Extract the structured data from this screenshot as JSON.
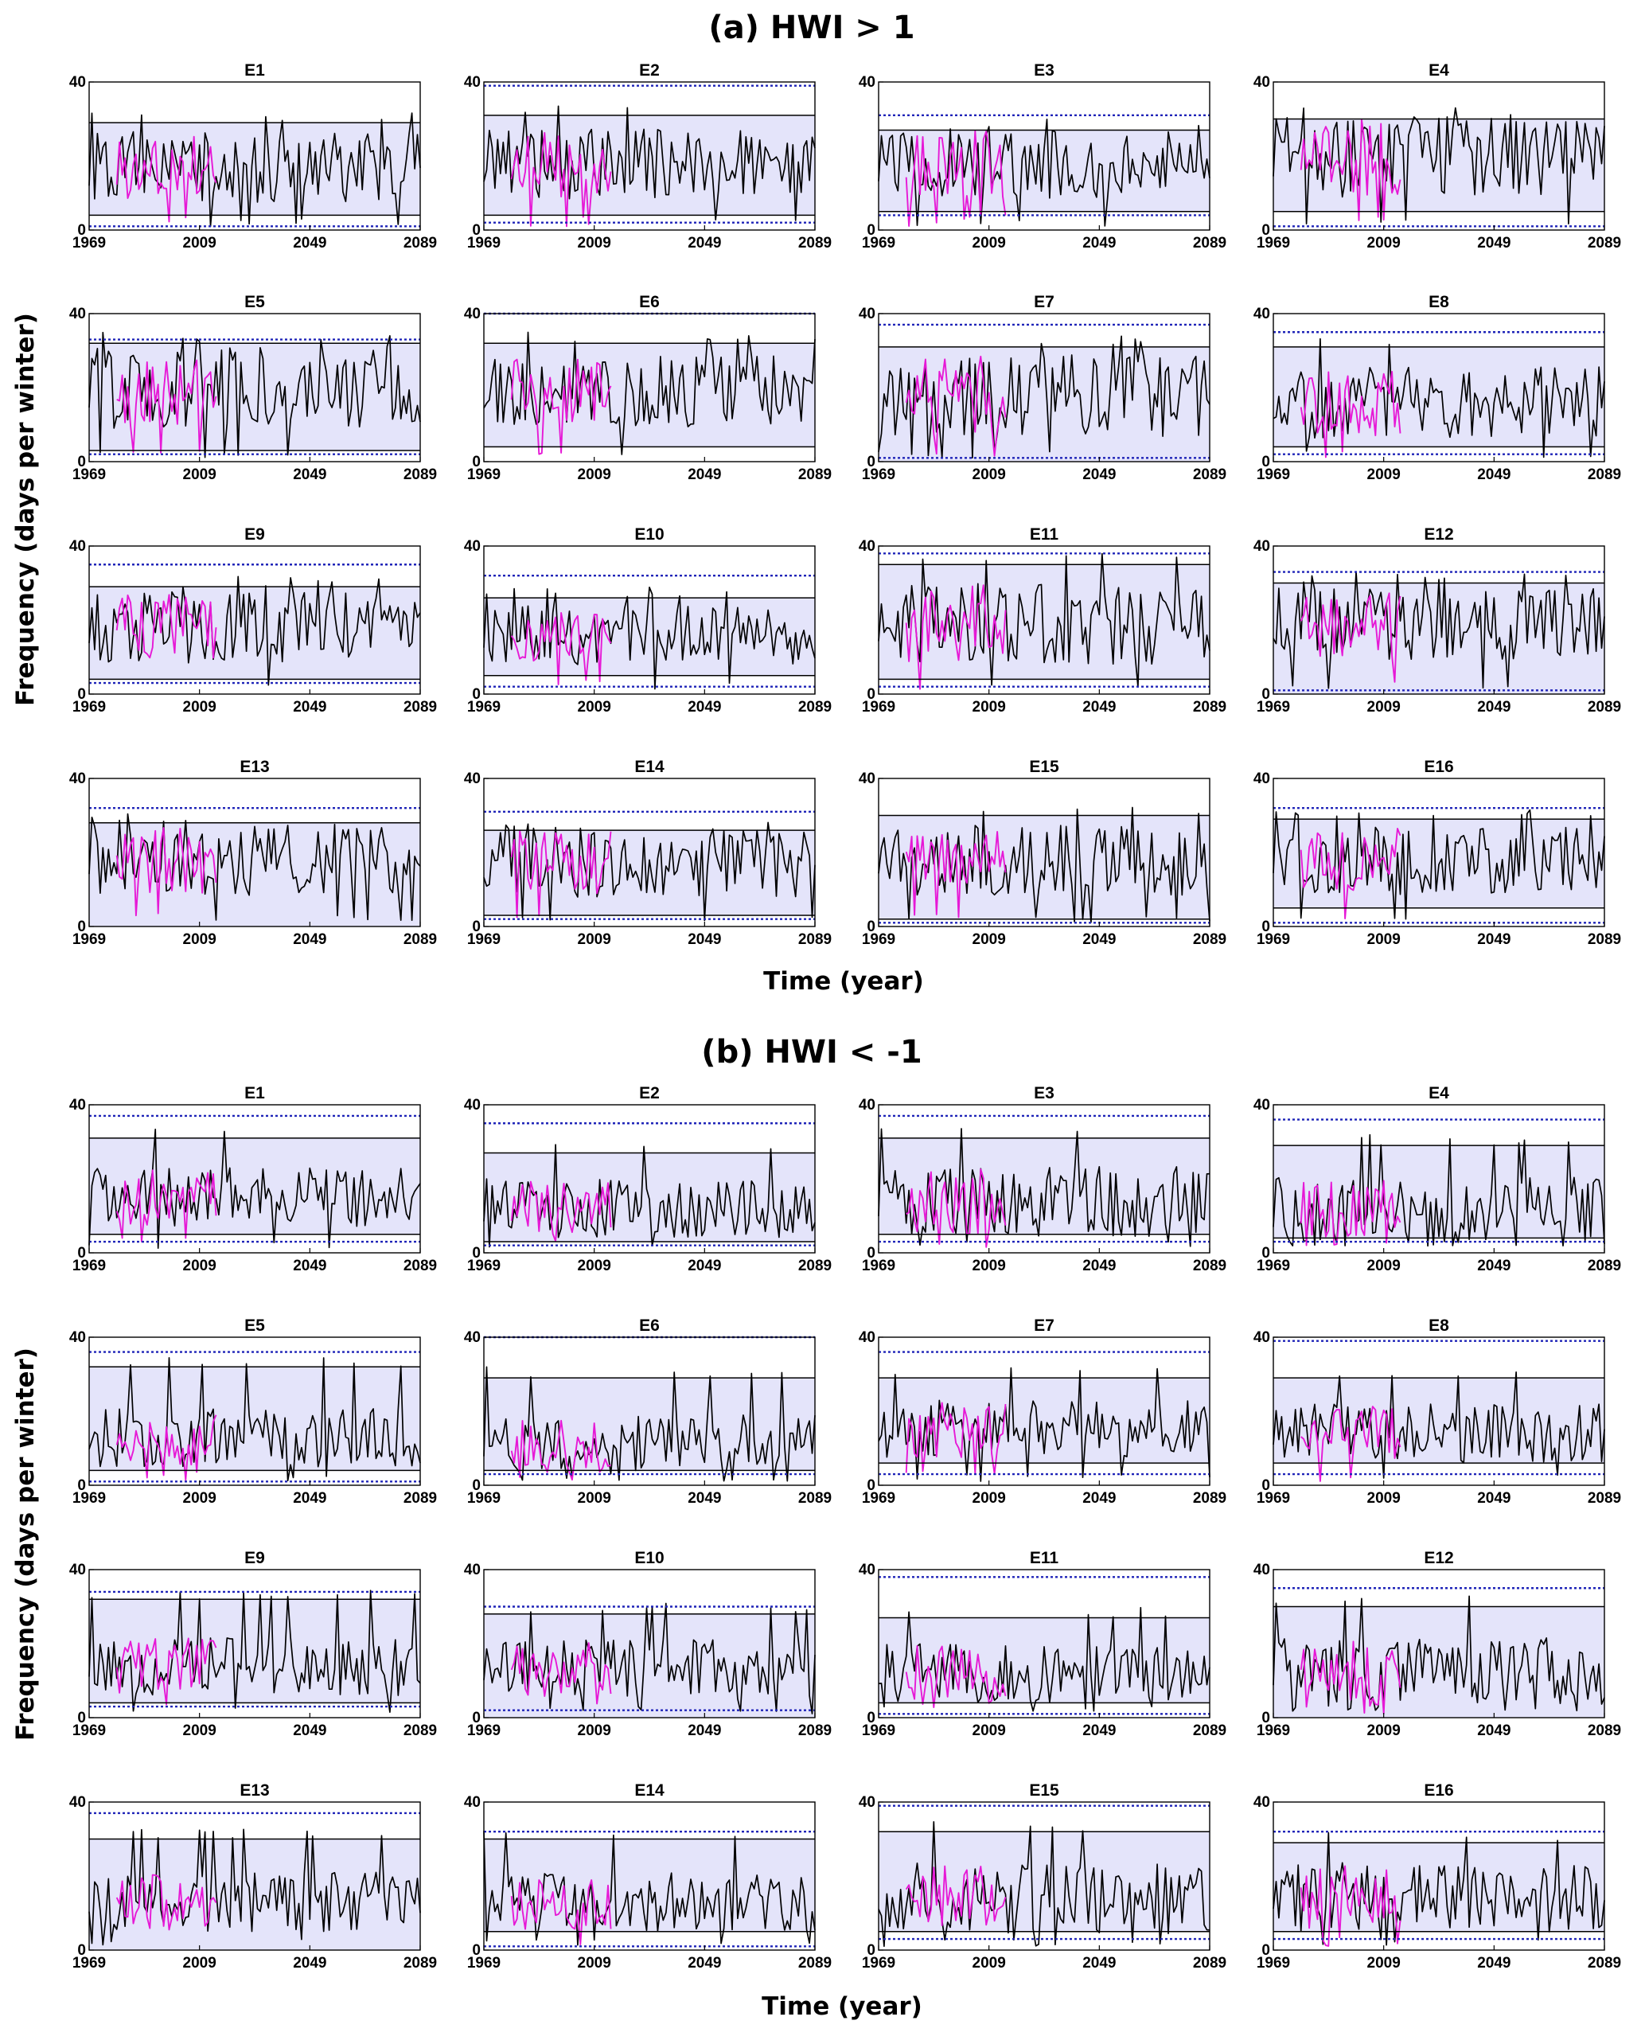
{
  "figure": {
    "panel_a_title": "(a)  HWI > 1",
    "panel_b_title": "(b)  HWI < -1",
    "ylabel": "Frequency (days per winter)",
    "xlabel": "Time (year)"
  },
  "colors": {
    "band": "#e4e4fa",
    "simulation": "#000000",
    "observation": "#e619d6",
    "dotted_bounds": "#1f24b8"
  },
  "chart_data": [
    {
      "group": "(a)  HWI > 1",
      "type": "line",
      "xlim": [
        1969,
        2089
      ],
      "ylim": [
        0,
        40
      ],
      "xticks": [
        1969,
        2009,
        2049,
        2089
      ],
      "yticks": [
        0,
        40
      ],
      "xlabel": "Time (year)",
      "ylabel": "Frequency (days per winter)",
      "grid": false,
      "panels": [
        {
          "title": "E1",
          "upper": 29,
          "lower": 4,
          "dot_upper": null,
          "dot_lower": 1,
          "mean": 17,
          "amp": 6
        },
        {
          "title": "E2",
          "upper": 31,
          "lower": 4,
          "dot_upper": 39,
          "dot_lower": 2,
          "mean": 18,
          "amp": 6
        },
        {
          "title": "E3",
          "upper": 27,
          "lower": 5,
          "dot_upper": 31,
          "dot_lower": 4,
          "mean": 18,
          "amp": 6
        },
        {
          "title": "E4",
          "upper": 30,
          "lower": 5,
          "dot_upper": null,
          "dot_lower": 1,
          "mean": 20,
          "amp": 7
        },
        {
          "title": "E5",
          "upper": 32,
          "lower": 3,
          "dot_upper": 33,
          "dot_lower": 2,
          "mean": 20,
          "amp": 7
        },
        {
          "title": "E6",
          "upper": 32,
          "lower": 4,
          "dot_upper": 40,
          "dot_lower": null,
          "mean": 19,
          "amp": 6
        },
        {
          "title": "E7",
          "upper": 31,
          "lower": null,
          "dot_upper": 37,
          "dot_lower": 1,
          "mean": 18,
          "amp": 7
        },
        {
          "title": "E8",
          "upper": 31,
          "lower": 4,
          "dot_upper": 35,
          "dot_lower": 2,
          "mean": 16,
          "amp": 6
        },
        {
          "title": "E9",
          "upper": 29,
          "lower": 4,
          "dot_upper": 35,
          "dot_lower": 3,
          "mean": 18,
          "amp": 6
        },
        {
          "title": "E10",
          "upper": 26,
          "lower": 5,
          "dot_upper": 32,
          "dot_lower": 2,
          "mean": 16,
          "amp": 5
        },
        {
          "title": "E11",
          "upper": 35,
          "lower": 4,
          "dot_upper": 38,
          "dot_lower": 2,
          "mean": 19,
          "amp": 7
        },
        {
          "title": "E12",
          "upper": 30,
          "lower": null,
          "dot_upper": 33,
          "dot_lower": 1,
          "mean": 19,
          "amp": 6
        },
        {
          "title": "E13",
          "upper": 28,
          "lower": null,
          "dot_upper": 32,
          "dot_lower": null,
          "mean": 18,
          "amp": 6
        },
        {
          "title": "E14",
          "upper": 26,
          "lower": 3,
          "dot_upper": 31,
          "dot_lower": 2,
          "mean": 17,
          "amp": 6
        },
        {
          "title": "E15",
          "upper": 30,
          "lower": 2,
          "dot_upper": null,
          "dot_lower": 1,
          "mean": 18,
          "amp": 6
        },
        {
          "title": "E16",
          "upper": 29,
          "lower": 5,
          "dot_upper": 32,
          "dot_lower": 1,
          "mean": 18,
          "amp": 6
        }
      ]
    },
    {
      "group": "(b)  HWI < -1",
      "type": "line",
      "xlim": [
        1969,
        2089
      ],
      "ylim": [
        0,
        40
      ],
      "xticks": [
        1969,
        2009,
        2049,
        2089
      ],
      "yticks": [
        0,
        40
      ],
      "xlabel": "Time (year)",
      "ylabel": "Frequency (days per winter)",
      "grid": false,
      "panels": [
        {
          "title": "E1",
          "upper": 31,
          "lower": 5,
          "dot_upper": 37,
          "dot_lower": 3,
          "mean": 15,
          "amp": 5
        },
        {
          "title": "E2",
          "upper": 27,
          "lower": 3,
          "dot_upper": 35,
          "dot_lower": 2,
          "mean": 12,
          "amp": 5
        },
        {
          "title": "E3",
          "upper": 31,
          "lower": 5,
          "dot_upper": 37,
          "dot_lower": 3,
          "mean": 14,
          "amp": 6
        },
        {
          "title": "E4",
          "upper": 29,
          "lower": 4,
          "dot_upper": 36,
          "dot_lower": 3,
          "mean": 11,
          "amp": 6
        },
        {
          "title": "E5",
          "upper": 32,
          "lower": 4,
          "dot_upper": 36,
          "dot_lower": 1,
          "mean": 13,
          "amp": 5
        },
        {
          "title": "E6",
          "upper": 29,
          "lower": 4,
          "dot_upper": 40,
          "dot_lower": 3,
          "mean": 11,
          "amp": 5
        },
        {
          "title": "E7",
          "upper": 29,
          "lower": 6,
          "dot_upper": 36,
          "dot_lower": 3,
          "mean": 15,
          "amp": 5
        },
        {
          "title": "E8",
          "upper": 29,
          "lower": 6,
          "dot_upper": 39,
          "dot_lower": 3,
          "mean": 14,
          "amp": 5
        },
        {
          "title": "E9",
          "upper": 32,
          "lower": 4,
          "dot_upper": 34,
          "dot_lower": 3,
          "mean": 14,
          "amp": 5
        },
        {
          "title": "E10",
          "upper": 28,
          "lower": null,
          "dot_upper": 30,
          "dot_lower": 2,
          "mean": 13,
          "amp": 5
        },
        {
          "title": "E11",
          "upper": 27,
          "lower": 4,
          "dot_upper": 38,
          "dot_lower": 1,
          "mean": 12,
          "amp": 5
        },
        {
          "title": "E12",
          "upper": 30,
          "lower": null,
          "dot_upper": 35,
          "dot_lower": null,
          "mean": 12,
          "amp": 6
        },
        {
          "title": "E13",
          "upper": 30,
          "lower": null,
          "dot_upper": 37,
          "dot_lower": null,
          "mean": 13,
          "amp": 5
        },
        {
          "title": "E14",
          "upper": 30,
          "lower": 5,
          "dot_upper": 32,
          "dot_lower": 1,
          "mean": 13,
          "amp": 5
        },
        {
          "title": "E15",
          "upper": 32,
          "lower": 5,
          "dot_upper": 39,
          "dot_lower": 3,
          "mean": 14,
          "amp": 6
        },
        {
          "title": "E16",
          "upper": 29,
          "lower": 5,
          "dot_upper": 32,
          "dot_lower": 3,
          "mean": 14,
          "amp": 6
        }
      ]
    }
  ]
}
